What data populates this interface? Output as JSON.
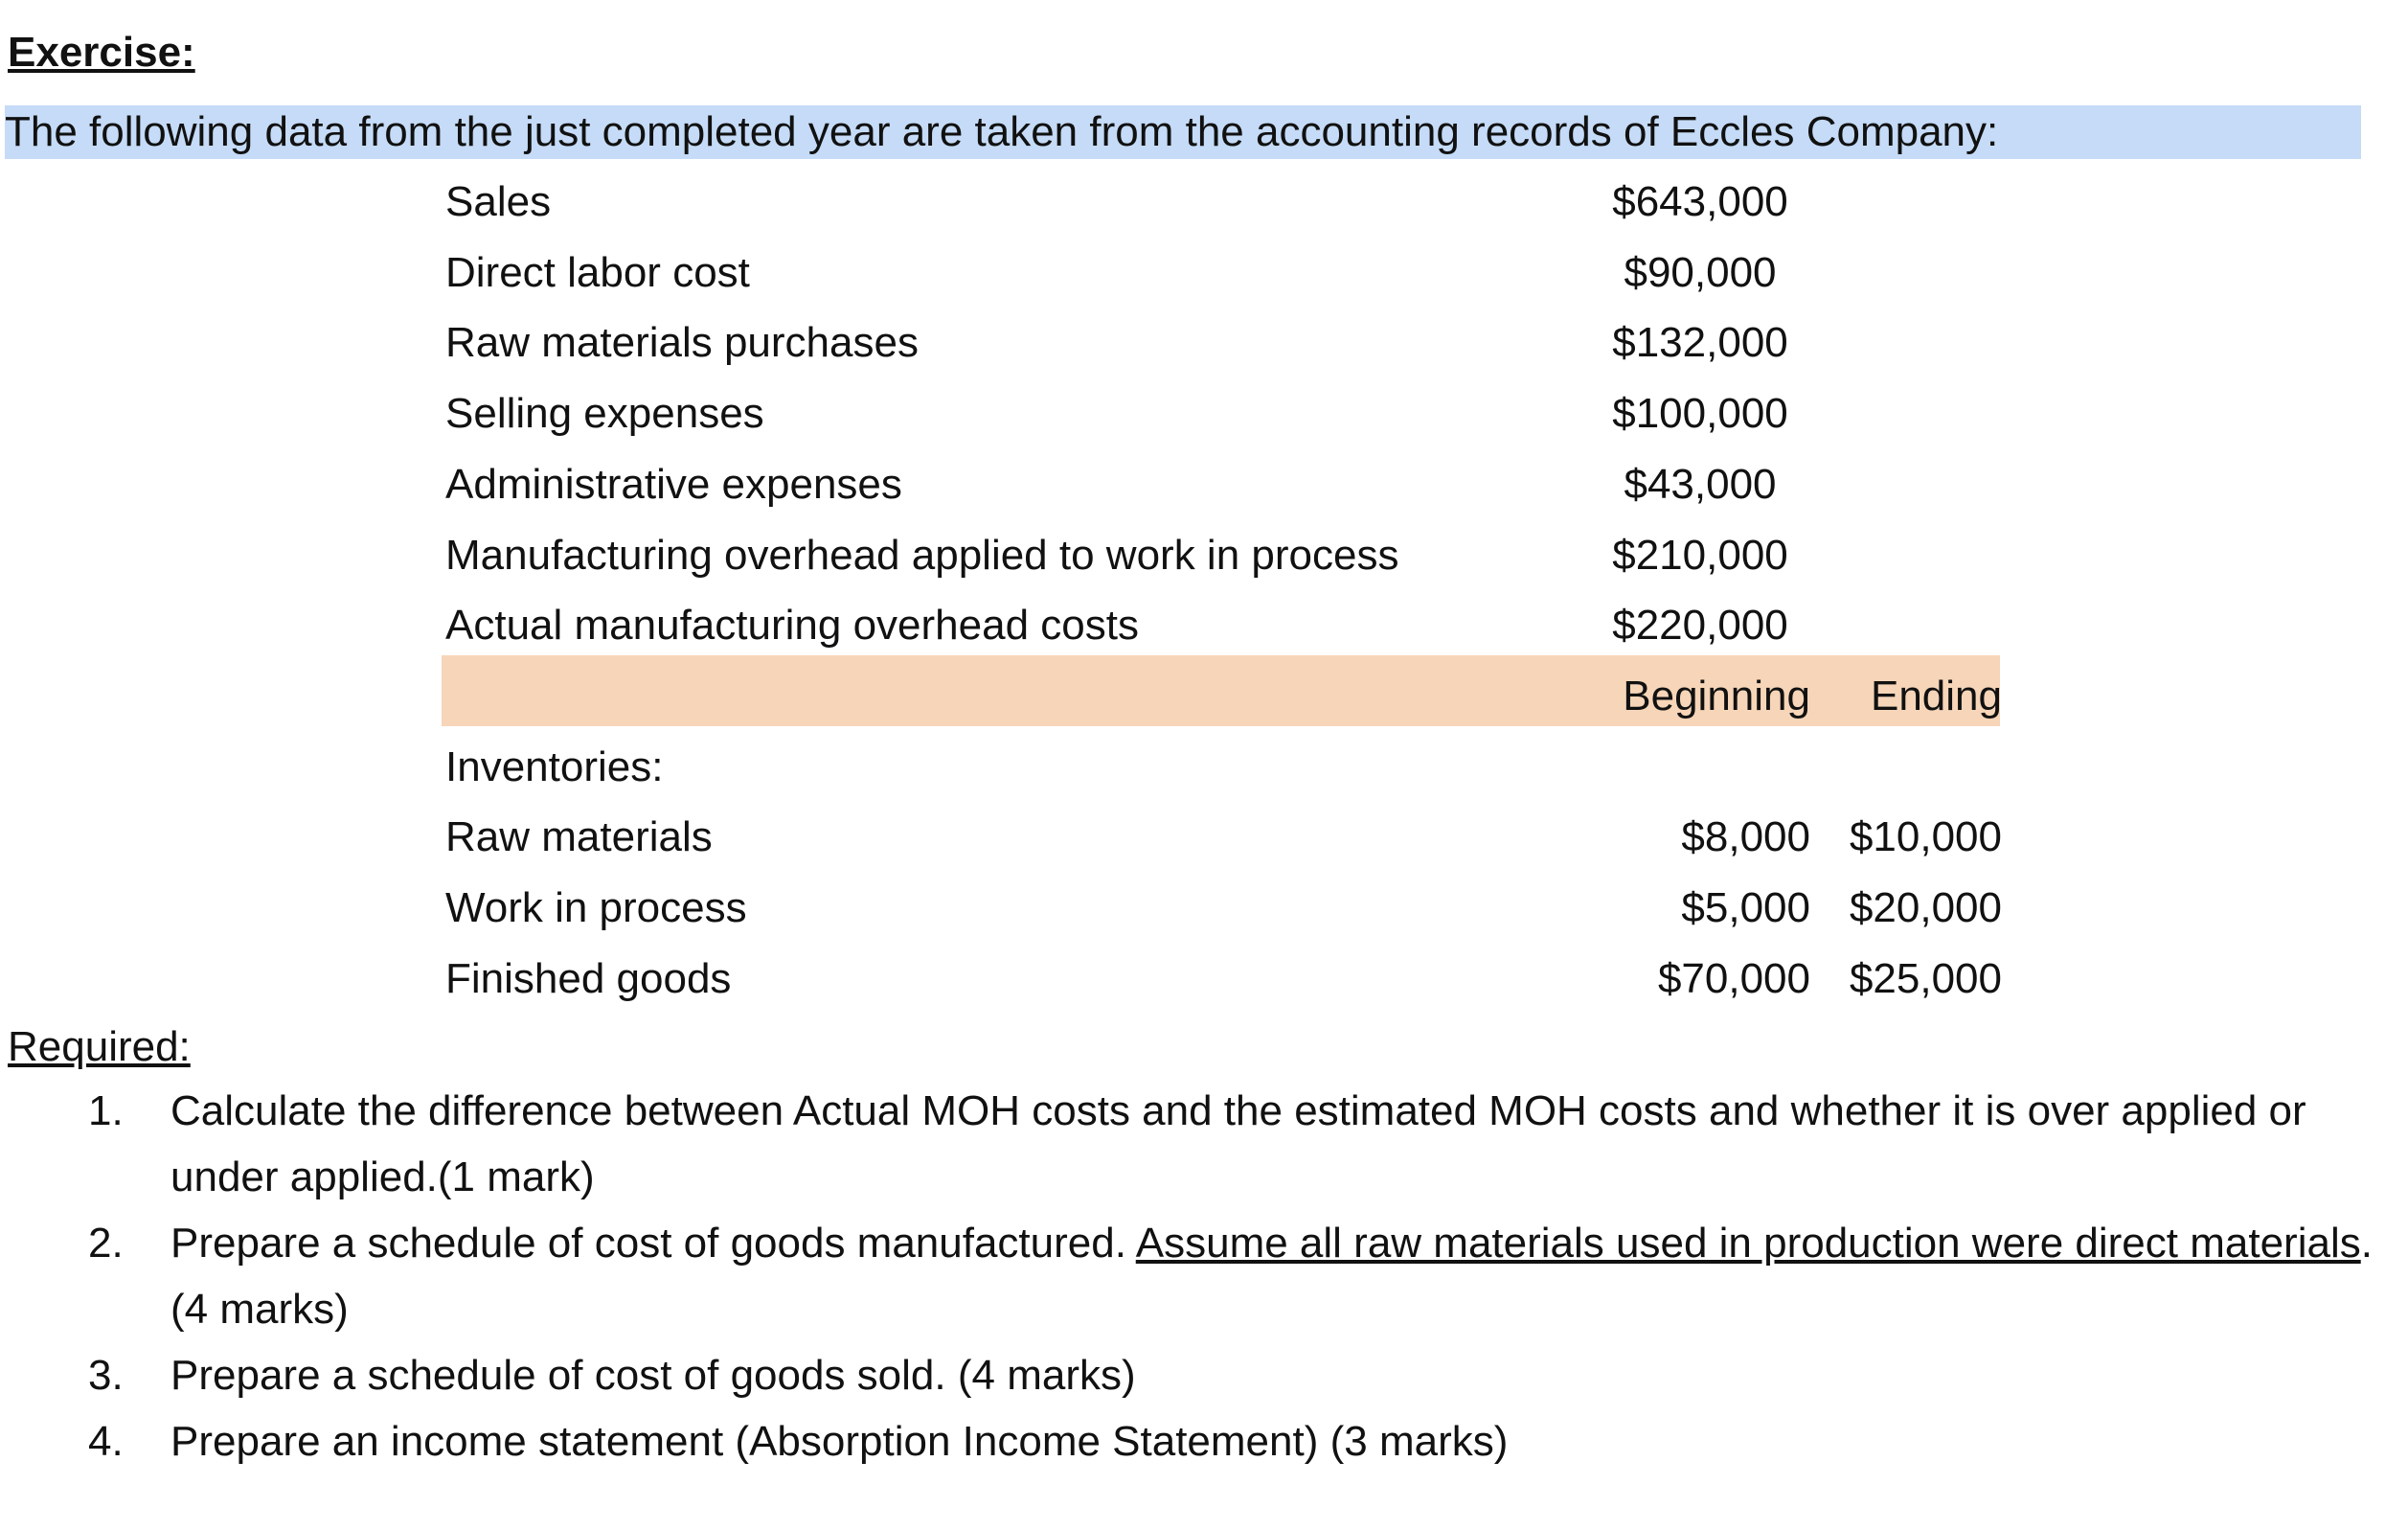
{
  "heading": "Exercise:",
  "intro": "The following data from the just completed year are taken from the accounting records of Eccles Company:",
  "data_table": {
    "rows": [
      [
        "Sales",
        "$643,000"
      ],
      [
        "Direct labor cost",
        "$90,000"
      ],
      [
        "Raw materials purchases",
        "$132,000"
      ],
      [
        "Selling expenses",
        "$100,000"
      ],
      [
        "Administrative expenses",
        "$43,000"
      ],
      [
        "Manufacturing overhead applied to work in process",
        "$210,000"
      ],
      [
        "Actual manufacturing overhead costs",
        "$220,000"
      ]
    ]
  },
  "inventory_table": {
    "header": [
      "Beginning",
      "Ending"
    ],
    "title": "Inventories:",
    "rows": [
      [
        "Raw materials",
        "$8,000",
        "$10,000"
      ],
      [
        "Work in process",
        "$5,000",
        "$20,000"
      ],
      [
        "Finished goods",
        "$70,000",
        "$25,000"
      ]
    ]
  },
  "required": {
    "heading": "Required:",
    "items": [
      {
        "number": "1.",
        "parts": [
          "Calculate the difference between Actual MOH costs and the estimated MOH costs and whether it is over applied or under applied.(1 mark)"
        ]
      },
      {
        "number": "2.",
        "parts": [
          "Prepare a schedule of cost of goods manufactured. ",
          "Assume all raw materials used in production were direct materials",
          ". (4 marks)"
        ]
      },
      {
        "number": "3.",
        "parts": [
          "Prepare a schedule of cost of goods sold. (4 marks)"
        ]
      },
      {
        "number": "4.",
        "parts": [
          "Prepare an income statement (Absorption Income Statement) (3 marks)"
        ]
      }
    ]
  }
}
